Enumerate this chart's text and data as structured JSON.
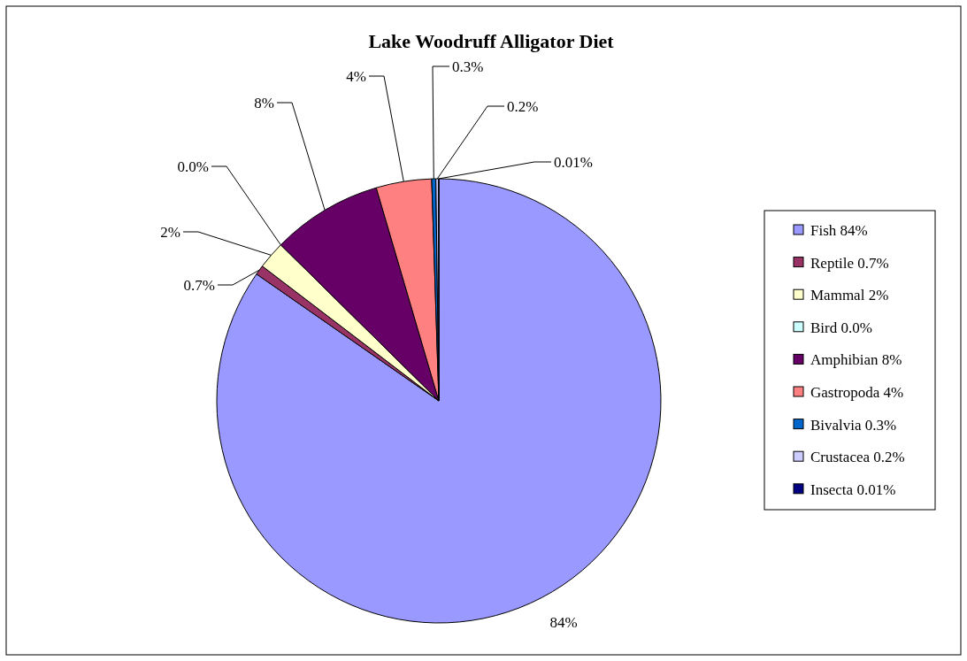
{
  "chart_data": {
    "type": "pie",
    "title": "Lake Woodruff Alligator Diet",
    "categories": [
      "Fish",
      "Reptile",
      "Mammal",
      "Bird",
      "Amphibian",
      "Gastropoda",
      "Bivalvia",
      "Crustacea",
      "Insecta"
    ],
    "values": [
      84,
      0.7,
      2,
      0.0,
      8,
      4,
      0.3,
      0.2,
      0.01
    ],
    "value_labels": [
      "84%",
      "0.7%",
      "2%",
      "0.0%",
      "8%",
      "4%",
      "0.3%",
      "0.2%",
      "0.01%"
    ],
    "colors": [
      "#9999ff",
      "#993366",
      "#ffffcc",
      "#ccffff",
      "#660066",
      "#ff8080",
      "#0066cc",
      "#ccccff",
      "#000080"
    ],
    "legend": "right"
  }
}
